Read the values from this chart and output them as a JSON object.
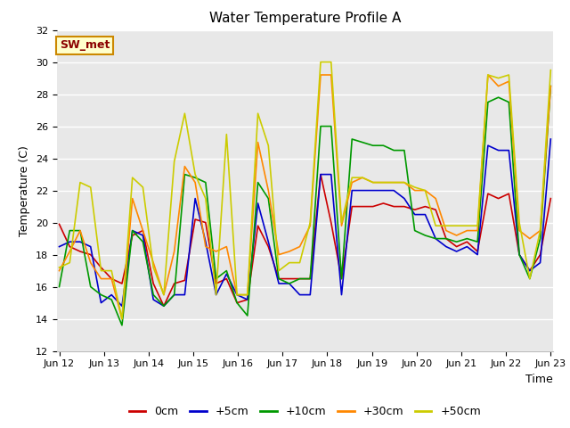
{
  "title": "Water Temperature Profile A",
  "xlabel": "Time",
  "ylabel": "Temperature (C)",
  "annotation": "SW_met",
  "ylim": [
    12,
    32
  ],
  "yticks": [
    12,
    14,
    16,
    18,
    20,
    22,
    24,
    26,
    28,
    30,
    32
  ],
  "legend_labels": [
    "0cm",
    "+5cm",
    "+10cm",
    "+30cm",
    "+50cm"
  ],
  "legend_colors": [
    "#cc0000",
    "#0000cc",
    "#009900",
    "#ff8800",
    "#cccc00"
  ],
  "bg_color": "#e8e8e8",
  "x_labels": [
    "Jun 12",
    "Jun 13",
    "Jun 14",
    "Jun 15",
    "Jun 16",
    "Jun 17",
    "Jun 18",
    "Jun 19",
    "Jun 20",
    "Jun 21",
    "Jun 22",
    "Jun 23"
  ],
  "series": {
    "0cm": [
      19.9,
      18.5,
      18.2,
      18.0,
      17.2,
      16.5,
      16.2,
      19.2,
      19.5,
      16.2,
      14.8,
      16.2,
      16.4,
      20.2,
      20.0,
      16.2,
      16.5,
      15.0,
      15.2,
      19.8,
      18.5,
      16.5,
      16.5,
      16.5,
      16.5,
      23.0,
      20.0,
      16.5,
      21.0,
      21.0,
      21.0,
      21.2,
      21.0,
      21.0,
      20.8,
      21.0,
      20.8,
      19.0,
      18.5,
      18.8,
      18.2,
      21.8,
      21.5,
      21.8,
      18.0,
      17.0,
      18.0,
      21.5
    ],
    "+5cm": [
      18.5,
      18.8,
      18.8,
      18.5,
      15.0,
      15.5,
      14.8,
      19.5,
      19.2,
      15.2,
      14.8,
      15.5,
      15.5,
      21.5,
      18.8,
      15.5,
      16.8,
      15.5,
      15.2,
      21.2,
      18.8,
      16.2,
      16.2,
      15.5,
      15.5,
      23.0,
      23.0,
      15.5,
      22.0,
      22.0,
      22.0,
      22.0,
      22.0,
      21.5,
      20.5,
      20.5,
      19.0,
      18.5,
      18.2,
      18.5,
      18.0,
      24.8,
      24.5,
      24.5,
      18.0,
      17.0,
      17.5,
      25.2
    ],
    "+10cm": [
      16.0,
      19.5,
      19.5,
      16.0,
      15.5,
      15.2,
      13.6,
      19.5,
      18.8,
      15.5,
      14.8,
      15.5,
      23.0,
      22.8,
      22.5,
      16.5,
      17.0,
      15.0,
      14.2,
      22.5,
      21.5,
      16.5,
      16.2,
      16.5,
      16.5,
      26.0,
      26.0,
      16.5,
      25.2,
      25.0,
      24.8,
      24.8,
      24.5,
      24.5,
      19.5,
      19.2,
      19.0,
      19.0,
      18.8,
      19.0,
      18.8,
      27.5,
      27.8,
      27.5,
      18.0,
      16.5,
      19.0,
      28.5
    ],
    "+30cm": [
      17.0,
      18.2,
      19.5,
      17.5,
      16.5,
      16.5,
      14.0,
      21.5,
      19.5,
      17.5,
      15.5,
      18.2,
      23.5,
      22.5,
      18.5,
      18.2,
      18.5,
      15.5,
      15.5,
      25.0,
      22.0,
      18.0,
      18.2,
      18.5,
      19.8,
      29.2,
      29.2,
      19.8,
      22.5,
      22.8,
      22.5,
      22.5,
      22.5,
      22.5,
      22.0,
      22.0,
      21.5,
      19.5,
      19.2,
      19.5,
      19.5,
      29.2,
      28.5,
      28.8,
      19.5,
      19.0,
      19.5,
      28.5
    ],
    "+50cm": [
      17.2,
      17.5,
      22.5,
      22.2,
      17.0,
      17.0,
      14.0,
      22.8,
      22.2,
      17.2,
      15.5,
      23.8,
      26.8,
      23.0,
      21.5,
      15.5,
      25.5,
      15.5,
      15.5,
      26.8,
      24.8,
      17.0,
      17.5,
      17.5,
      20.0,
      30.0,
      30.0,
      20.0,
      22.8,
      22.8,
      22.5,
      22.5,
      22.5,
      22.5,
      22.2,
      22.0,
      19.8,
      19.8,
      19.8,
      19.8,
      19.8,
      29.2,
      29.0,
      29.2,
      20.0,
      16.5,
      19.5,
      29.5
    ]
  }
}
